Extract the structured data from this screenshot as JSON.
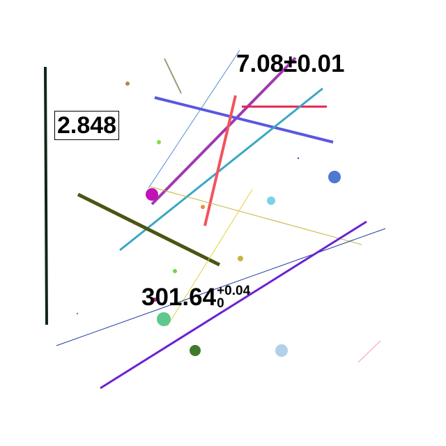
{
  "labels": {
    "boxed_value": "2.848",
    "plus_minus_value": "7.08±0.01",
    "asym_main": "301.64",
    "asym_sup": "+0.04",
    "asym_sub": "0"
  },
  "colors": {
    "background": "#ffffff",
    "text": "#000000"
  },
  "shapes": {
    "lines": [
      {
        "name": "dark-vertical-line",
        "color": "#0f2618"
      },
      {
        "name": "olive-diagonal-line",
        "color": "#9c9a72"
      },
      {
        "name": "blue-thin-line",
        "color": "#4f8bd9"
      },
      {
        "name": "magenta-purple-line",
        "color": "#a038b0"
      },
      {
        "name": "crimson-horizontal-line",
        "color": "#e0264e"
      },
      {
        "name": "slate-blue-line",
        "color": "#5a57de"
      },
      {
        "name": "teal-line",
        "color": "#3aa6c4"
      },
      {
        "name": "coral-line",
        "color": "#f2535d"
      },
      {
        "name": "dark-olive-thick-line",
        "color": "#4a5512"
      },
      {
        "name": "gold-thin-line",
        "color": "#c9b13a"
      },
      {
        "name": "yellow-thin-line",
        "color": "#e3cf3a"
      },
      {
        "name": "navy-long-line",
        "color": "#1a3a9c"
      },
      {
        "name": "violet-thick-line",
        "color": "#6a22d2"
      },
      {
        "name": "pink-faint-line",
        "color": "#f59aa4"
      }
    ],
    "dots": [
      {
        "name": "tan-dot",
        "color": "#b08a52"
      },
      {
        "name": "lime-dot",
        "color": "#7be04a"
      },
      {
        "name": "magenta-dot",
        "color": "#c012b6"
      },
      {
        "name": "orange-dot",
        "color": "#f08a3a"
      },
      {
        "name": "royal-blue-dot",
        "color": "#4e78d2"
      },
      {
        "name": "sky-blue-dot",
        "color": "#7ad2e6"
      },
      {
        "name": "khaki-dot",
        "color": "#c9b244"
      },
      {
        "name": "green-small-dot",
        "color": "#6ad84a"
      },
      {
        "name": "mint-dot",
        "color": "#5dc98e"
      },
      {
        "name": "forest-dot",
        "color": "#3f7a2c"
      },
      {
        "name": "powder-blue-dot",
        "color": "#b1d0ea"
      },
      {
        "name": "blue-tiny-dot",
        "color": "#3a4ad0"
      },
      {
        "name": "olive-tiny-dot",
        "color": "#8a8a2a"
      },
      {
        "name": "magenta-small-dot",
        "color": "#c01a8a"
      }
    ]
  }
}
